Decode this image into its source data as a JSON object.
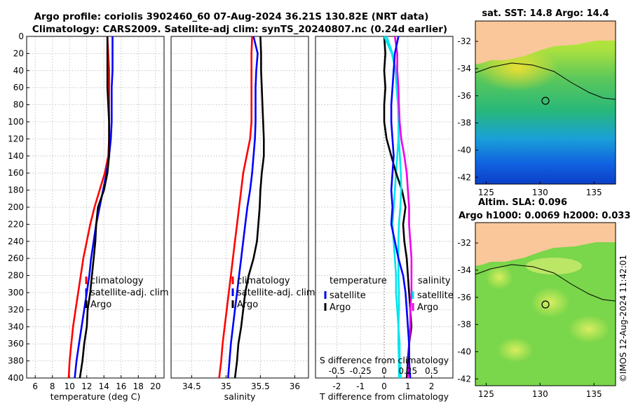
{
  "header": {
    "title_line1": "Argo profile: coriolis 3902460_60 07-Aug-2024 36.21S 130.82E (NRT data)",
    "title_line2": "Climatology: CARS2009. Satellite-adj clim: synTS_20240807.nc (0.24d earlier)"
  },
  "watermark": "©IMOS 12-Aug-2024 11:42:01",
  "colors": {
    "climatology": "#ff0000",
    "satellite": "#0000ff",
    "argo": "#000000",
    "sat_diff": "#00e5ee",
    "argo_sal_diff": "#ee00ee",
    "land": "#f9c79a"
  },
  "chart_data": [
    {
      "type": "line",
      "panel": "temperature",
      "xlabel": "temperature (deg C)",
      "ylabel": "",
      "xlim": [
        5,
        21
      ],
      "ylim": [
        400,
        0
      ],
      "xticks": [
        6,
        8,
        10,
        12,
        14,
        16,
        18,
        20
      ],
      "yticks": [
        0,
        20,
        40,
        60,
        80,
        100,
        120,
        140,
        160,
        180,
        200,
        220,
        240,
        260,
        280,
        300,
        320,
        340,
        360,
        380,
        400
      ],
      "legend": [
        "climatology",
        "satellite-adj. clim",
        "Argo"
      ],
      "series": [
        {
          "name": "climatology",
          "color": "#ff0000",
          "x": [
            14.4,
            14.5,
            14.6,
            14.6,
            14.6,
            14.6,
            14.6,
            14.5,
            14.1,
            13.5,
            12.9,
            12.4,
            12.0,
            11.6,
            11.3,
            11.0,
            10.7,
            10.4,
            10.2,
            10.0,
            9.9
          ],
          "y": [
            0,
            20,
            40,
            60,
            80,
            100,
            120,
            140,
            160,
            180,
            200,
            220,
            240,
            260,
            280,
            300,
            320,
            340,
            360,
            380,
            400
          ]
        },
        {
          "name": "satellite-adj. clim",
          "color": "#0000ff",
          "x": [
            15.0,
            15.0,
            15.0,
            14.9,
            14.9,
            14.9,
            14.8,
            14.6,
            14.3,
            13.9,
            13.5,
            13.1,
            12.8,
            12.5,
            12.3,
            12.0,
            11.7,
            11.4,
            11.1,
            10.8,
            10.6
          ],
          "y": [
            0,
            20,
            40,
            60,
            80,
            100,
            120,
            140,
            160,
            180,
            200,
            220,
            240,
            260,
            280,
            300,
            320,
            340,
            360,
            380,
            400
          ]
        },
        {
          "name": "Argo",
          "color": "#000000",
          "x": [
            14.4,
            14.4,
            14.4,
            14.4,
            14.5,
            14.6,
            14.6,
            14.6,
            14.4,
            14.0,
            13.3,
            13.1,
            13.0,
            12.8,
            12.6,
            12.4,
            12.1,
            12.0,
            11.7,
            11.5,
            11.2
          ],
          "y": [
            0,
            20,
            40,
            60,
            80,
            100,
            120,
            140,
            160,
            180,
            200,
            220,
            240,
            260,
            280,
            300,
            320,
            340,
            360,
            380,
            400
          ]
        }
      ]
    },
    {
      "type": "line",
      "panel": "salinity",
      "xlabel": "salinity",
      "ylabel": "",
      "xlim": [
        34.2,
        36.2
      ],
      "ylim": [
        400,
        0
      ],
      "xticks": [
        34.5,
        35,
        35.5,
        36
      ],
      "legend": [
        "climatology",
        "satellite-adj. clim",
        "Argo"
      ],
      "series": [
        {
          "name": "climatology",
          "color": "#ff0000",
          "x": [
            35.38,
            35.37,
            35.37,
            35.37,
            35.37,
            35.37,
            35.35,
            35.3,
            35.25,
            35.22,
            35.19,
            35.16,
            35.13,
            35.1,
            35.07,
            35.04,
            35.01,
            34.98,
            34.95,
            34.93,
            34.9
          ],
          "y": [
            0,
            20,
            40,
            60,
            80,
            100,
            120,
            140,
            160,
            180,
            200,
            220,
            240,
            260,
            280,
            300,
            320,
            340,
            360,
            380,
            400
          ]
        },
        {
          "name": "satellite-adj. clim",
          "color": "#0000ff",
          "x": [
            35.4,
            35.46,
            35.44,
            35.43,
            35.43,
            35.43,
            35.42,
            35.4,
            35.38,
            35.35,
            35.31,
            35.28,
            35.25,
            35.22,
            35.19,
            35.16,
            35.13,
            35.1,
            35.07,
            35.05,
            35.03
          ],
          "y": [
            0,
            20,
            40,
            60,
            80,
            100,
            120,
            140,
            160,
            180,
            200,
            220,
            240,
            260,
            280,
            300,
            320,
            340,
            360,
            380,
            400
          ]
        },
        {
          "name": "Argo",
          "color": "#000000",
          "x": [
            35.5,
            35.51,
            35.51,
            35.52,
            35.53,
            35.54,
            35.55,
            35.55,
            35.52,
            35.5,
            35.49,
            35.47,
            35.45,
            35.4,
            35.33,
            35.28,
            35.25,
            35.22,
            35.18,
            35.16,
            35.13
          ],
          "y": [
            0,
            20,
            40,
            60,
            80,
            100,
            120,
            140,
            160,
            180,
            200,
            220,
            240,
            260,
            280,
            300,
            320,
            340,
            360,
            380,
            400
          ]
        }
      ]
    },
    {
      "type": "line",
      "panel": "difference",
      "xlabel": "T difference from climatology",
      "xlabel_top": "S difference from climatology",
      "xlim": [
        -2.9,
        2.9
      ],
      "ylim": [
        400,
        0
      ],
      "xticks": [
        -2,
        -1,
        0,
        1,
        2
      ],
      "xticks_salinity": [
        "-0.5",
        "-0.25",
        "0",
        "0.25",
        "0.5"
      ],
      "legend_left": [
        "temperature",
        "satellite",
        "Argo"
      ],
      "legend_right": [
        "salinity",
        "satellite",
        "Argo"
      ],
      "series": [
        {
          "name": "T satellite",
          "color": "#00e5ee",
          "x": [
            0.1,
            0.35,
            0.5,
            0.55,
            0.6,
            0.6,
            0.6,
            0.55,
            0.5,
            0.45,
            0.4,
            0.35,
            0.4,
            0.45,
            0.5,
            0.5,
            0.55,
            0.6,
            0.65,
            0.65,
            0.7
          ],
          "y": [
            0,
            20,
            40,
            60,
            80,
            100,
            120,
            140,
            160,
            180,
            200,
            220,
            240,
            260,
            280,
            300,
            320,
            340,
            360,
            380,
            400
          ]
        },
        {
          "name": "T Argo",
          "color": "#000000",
          "x": [
            0.0,
            0.05,
            0.0,
            0.05,
            0.0,
            0.0,
            0.1,
            0.3,
            0.5,
            0.75,
            0.9,
            0.8,
            0.85,
            0.95,
            1.0,
            1.05,
            1.1,
            1.15,
            1.05,
            1.0,
            0.95
          ],
          "y": [
            0,
            20,
            40,
            60,
            80,
            100,
            120,
            140,
            160,
            180,
            200,
            220,
            240,
            260,
            280,
            300,
            320,
            340,
            360,
            380,
            400
          ]
        },
        {
          "name": "S satellite",
          "color": "#00e5ee",
          "x": [
            0.0,
            0.32,
            0.48,
            0.52,
            0.58,
            0.6,
            0.62,
            0.66,
            0.7,
            0.72,
            0.68,
            0.62,
            0.6,
            0.6,
            0.6,
            0.62,
            0.62,
            0.6,
            0.6,
            0.62,
            0.62
          ],
          "y": [
            0,
            20,
            40,
            60,
            80,
            100,
            120,
            140,
            160,
            180,
            200,
            220,
            240,
            260,
            280,
            300,
            320,
            340,
            360,
            380,
            400
          ]
        },
        {
          "name": "S Argo",
          "color": "#ee00ee",
          "x": [
            0.45,
            0.55,
            0.55,
            0.6,
            0.62,
            0.65,
            0.72,
            0.85,
            0.95,
            1.0,
            1.05,
            1.05,
            1.1,
            1.15,
            1.15,
            1.15,
            1.1,
            1.1,
            1.05,
            1.05,
            1.0
          ],
          "y": [
            0,
            20,
            40,
            60,
            80,
            100,
            120,
            140,
            160,
            180,
            200,
            220,
            240,
            260,
            280,
            300,
            320,
            340,
            360,
            380,
            400
          ]
        },
        {
          "name": "satellite-adj minus clim",
          "color": "#0000ff",
          "x": [
            0.6,
            0.45,
            0.4,
            0.35,
            0.3,
            0.3,
            0.35,
            0.4,
            0.35,
            0.3,
            0.35,
            0.3,
            0.45,
            0.6,
            0.8,
            0.9,
            0.95,
            1.0,
            1.05,
            1.05,
            1.1
          ],
          "y": [
            0,
            20,
            40,
            60,
            80,
            100,
            120,
            140,
            160,
            180,
            200,
            220,
            240,
            260,
            280,
            300,
            320,
            340,
            360,
            380,
            400
          ]
        }
      ]
    },
    {
      "type": "heatmap",
      "panel": "sst-map",
      "title": "sat. SST: 14.8 Argo: 14.4",
      "xticks": [
        125,
        130,
        135
      ],
      "yticks": [
        -32,
        -34,
        -36,
        -38,
        -40,
        -42
      ],
      "xlim": [
        124,
        137
      ],
      "ylim": [
        -42.5,
        -30.5
      ],
      "argo_location": {
        "lon": 130.82,
        "lat": -36.21
      }
    },
    {
      "type": "heatmap",
      "panel": "sla-map",
      "title_line1": "Altim. SLA: 0.096",
      "title_line2": "Argo h1000: 0.0069 h2000: 0.033",
      "xticks": [
        125,
        130,
        135
      ],
      "yticks": [
        -32,
        -34,
        -36,
        -38,
        -40,
        -42
      ],
      "xlim": [
        124,
        137
      ],
      "ylim": [
        -42.5,
        -30.5
      ],
      "argo_location": {
        "lon": 130.82,
        "lat": -36.21
      }
    }
  ]
}
